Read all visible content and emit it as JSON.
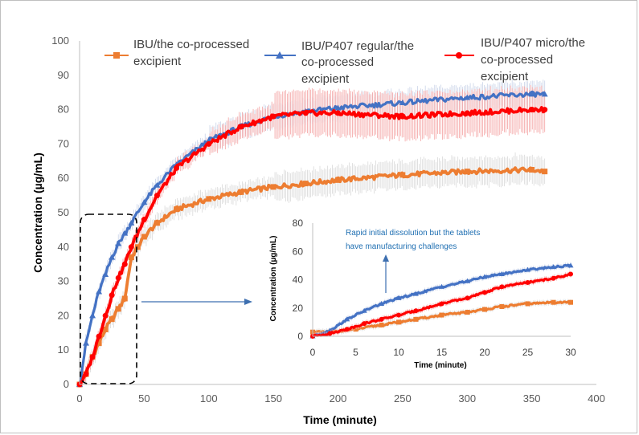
{
  "chart_data": [
    {
      "type": "line",
      "xlabel": "Time (minute)",
      "ylabel": "Concentration (µg/mL)",
      "xlim": [
        0,
        400
      ],
      "ylim": [
        0,
        100
      ],
      "xticks": [
        "0",
        "50",
        "100",
        "150",
        "200",
        "250",
        "300",
        "350",
        "400"
      ],
      "yticks": [
        "0",
        "10",
        "20",
        "30",
        "40",
        "50",
        "60",
        "70",
        "80",
        "90",
        "100"
      ],
      "grid": false,
      "legend_position": "top",
      "series": [
        {
          "name": "IBU/the co-processed excipient",
          "color": "#ed7d31",
          "marker": "square",
          "x": [
            0,
            5,
            10,
            15,
            20,
            25,
            30,
            35,
            40,
            45,
            50,
            60,
            75,
            100,
            125,
            150,
            175,
            200,
            250,
            300,
            350,
            360
          ],
          "y": [
            0,
            3,
            8,
            12,
            16,
            19,
            22,
            25,
            37,
            40,
            43,
            47,
            51,
            54,
            56,
            57.5,
            58.5,
            59.5,
            61,
            62,
            62.5,
            62
          ]
        },
        {
          "name": "IBU/P407 regular/the co-processed excipient",
          "color": "#4472c4",
          "marker": "triangle",
          "x": [
            0,
            5,
            10,
            15,
            20,
            25,
            30,
            35,
            40,
            50,
            60,
            75,
            100,
            125,
            150,
            175,
            200,
            250,
            300,
            350,
            360
          ],
          "y": [
            0,
            12,
            20,
            27,
            32,
            37,
            41,
            44,
            47,
            53,
            58,
            64,
            71,
            75,
            78,
            79.5,
            80.5,
            82,
            83.5,
            84.5,
            84.5
          ]
        },
        {
          "name": "IBU/P407 micro/the co-processed excipient",
          "color": "#ff0000",
          "marker": "diamond",
          "x": [
            0,
            5,
            10,
            15,
            20,
            25,
            30,
            35,
            40,
            50,
            60,
            75,
            100,
            125,
            150,
            175,
            200,
            250,
            300,
            350,
            360
          ],
          "y": [
            0,
            3,
            8,
            14,
            20,
            26,
            31,
            35,
            40,
            48,
            55,
            63,
            70,
            75,
            78,
            79,
            79,
            78,
            79,
            80,
            80
          ]
        }
      ]
    },
    {
      "type": "line",
      "xlabel": "Time (minute)",
      "ylabel": "Concentration (µg/mL)",
      "xlim": [
        0,
        30
      ],
      "ylim": [
        0,
        80
      ],
      "xticks": [
        "0",
        "5",
        "10",
        "15",
        "20",
        "25",
        "30"
      ],
      "yticks": [
        "0",
        "20",
        "40",
        "60",
        "80"
      ],
      "grid": false,
      "series": [
        {
          "name": "IBU/the co-processed excipient",
          "color": "#ed7d31",
          "x": [
            0,
            2,
            5,
            8,
            10,
            12,
            15,
            18,
            20,
            22,
            25,
            28,
            30
          ],
          "y": [
            3,
            3,
            5,
            8,
            10,
            12,
            15,
            17,
            19,
            21,
            23,
            24,
            24
          ]
        },
        {
          "name": "IBU/P407 regular/the co-processed excipient",
          "color": "#4472c4",
          "x": [
            0,
            2,
            4,
            6,
            8,
            10,
            12,
            15,
            18,
            20,
            22,
            25,
            28,
            30
          ],
          "y": [
            0,
            4,
            12,
            18,
            23,
            27,
            30,
            35,
            39,
            42,
            44,
            47,
            49,
            50
          ]
        },
        {
          "name": "IBU/P407 micro/the co-processed excipient",
          "color": "#ff0000",
          "x": [
            0,
            2,
            4,
            6,
            8,
            10,
            12,
            15,
            18,
            20,
            22,
            25,
            28,
            30
          ],
          "y": [
            0,
            2,
            5,
            9,
            12,
            15,
            18,
            23,
            27,
            31,
            35,
            38,
            41,
            44
          ]
        }
      ]
    }
  ],
  "legend": {
    "items": [
      "IBU/the co-processed excipient",
      "IBU/P407 regular/the co-processed excipient",
      "IBU/P407 micro/the co-processed excipient"
    ]
  },
  "annotation": {
    "line1": "Rapid initial dissolution but the tablets",
    "line2": "have manufacturing challenges"
  }
}
